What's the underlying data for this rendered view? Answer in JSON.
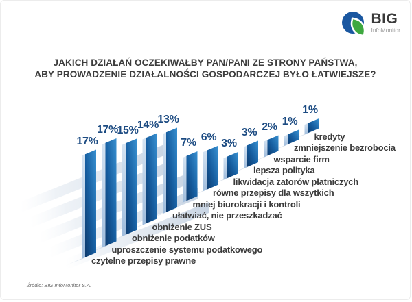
{
  "logo": {
    "name": "BIG",
    "subtitle": "InfoMonitor"
  },
  "title": "JAKICH DZIAŁAŃ OCZEKIWAŁBY PAN/PANI ZE STRONY PAŃSTWA, ABY PROWADZENIE DZIAŁALNOŚCI GOSPODARCZEJ BYŁO ŁATWIEJSZE?",
  "source": "Źródło: BIG InfoMonitor S.A.",
  "chart_data": {
    "type": "bar",
    "style": "3d-diagonal-ascending-planks",
    "unit": "%",
    "title": "JAKICH DZIAŁAŃ OCZEKIWAŁBY PAN/PANI ZE STRONY PAŃSTWA, ABY PROWADZENIE DZIAŁALNOŚCI GOSPODARCZEJ BYŁO ŁATWIEJSZE?",
    "title_lines": [
      "JAKICH DZIAŁAŃ OCZEKIWAŁBY PAN/PANI ZE STRONY PAŃSTWA,",
      "ABY PROWADZENIE DZIAŁALNOŚCI GOSPODARCZEJ BYŁO ŁATWIEJSZE?"
    ],
    "categories": [
      "czytelne przepisy prawne",
      "uproszczenie systemu podatkowego",
      "obniżenie podatków",
      "obniżenie ZUS",
      "ułatwiać, nie przeszkadzać",
      "mniej biurokracji i kontroli",
      "równe przepisy dla wszytkich",
      "likwidacja zatorów płatniczych",
      "lepsza polityka",
      "wsparcie firm",
      "zmniejszenie bezrobocia",
      "kredyty"
    ],
    "values": [
      17,
      17,
      15,
      14,
      13,
      7,
      6,
      3,
      3,
      2,
      1,
      1
    ],
    "value_labels": [
      "17%",
      "17%",
      "15%",
      "14%",
      "13%",
      "7%",
      "6%",
      "3%",
      "3%",
      "2%",
      "1%",
      "1%"
    ],
    "axes": "none",
    "grid": false,
    "legend": "none",
    "colors": {
      "bar_dark": "#0d3a6d",
      "bar_mid": "#165d9f",
      "bar_light": "#3890d0",
      "bar_edge_light": "#b7cde6",
      "shadow_band": "#c5d2e2",
      "value_label": "#1c4b82",
      "category_label": "#3b3b3b"
    }
  }
}
